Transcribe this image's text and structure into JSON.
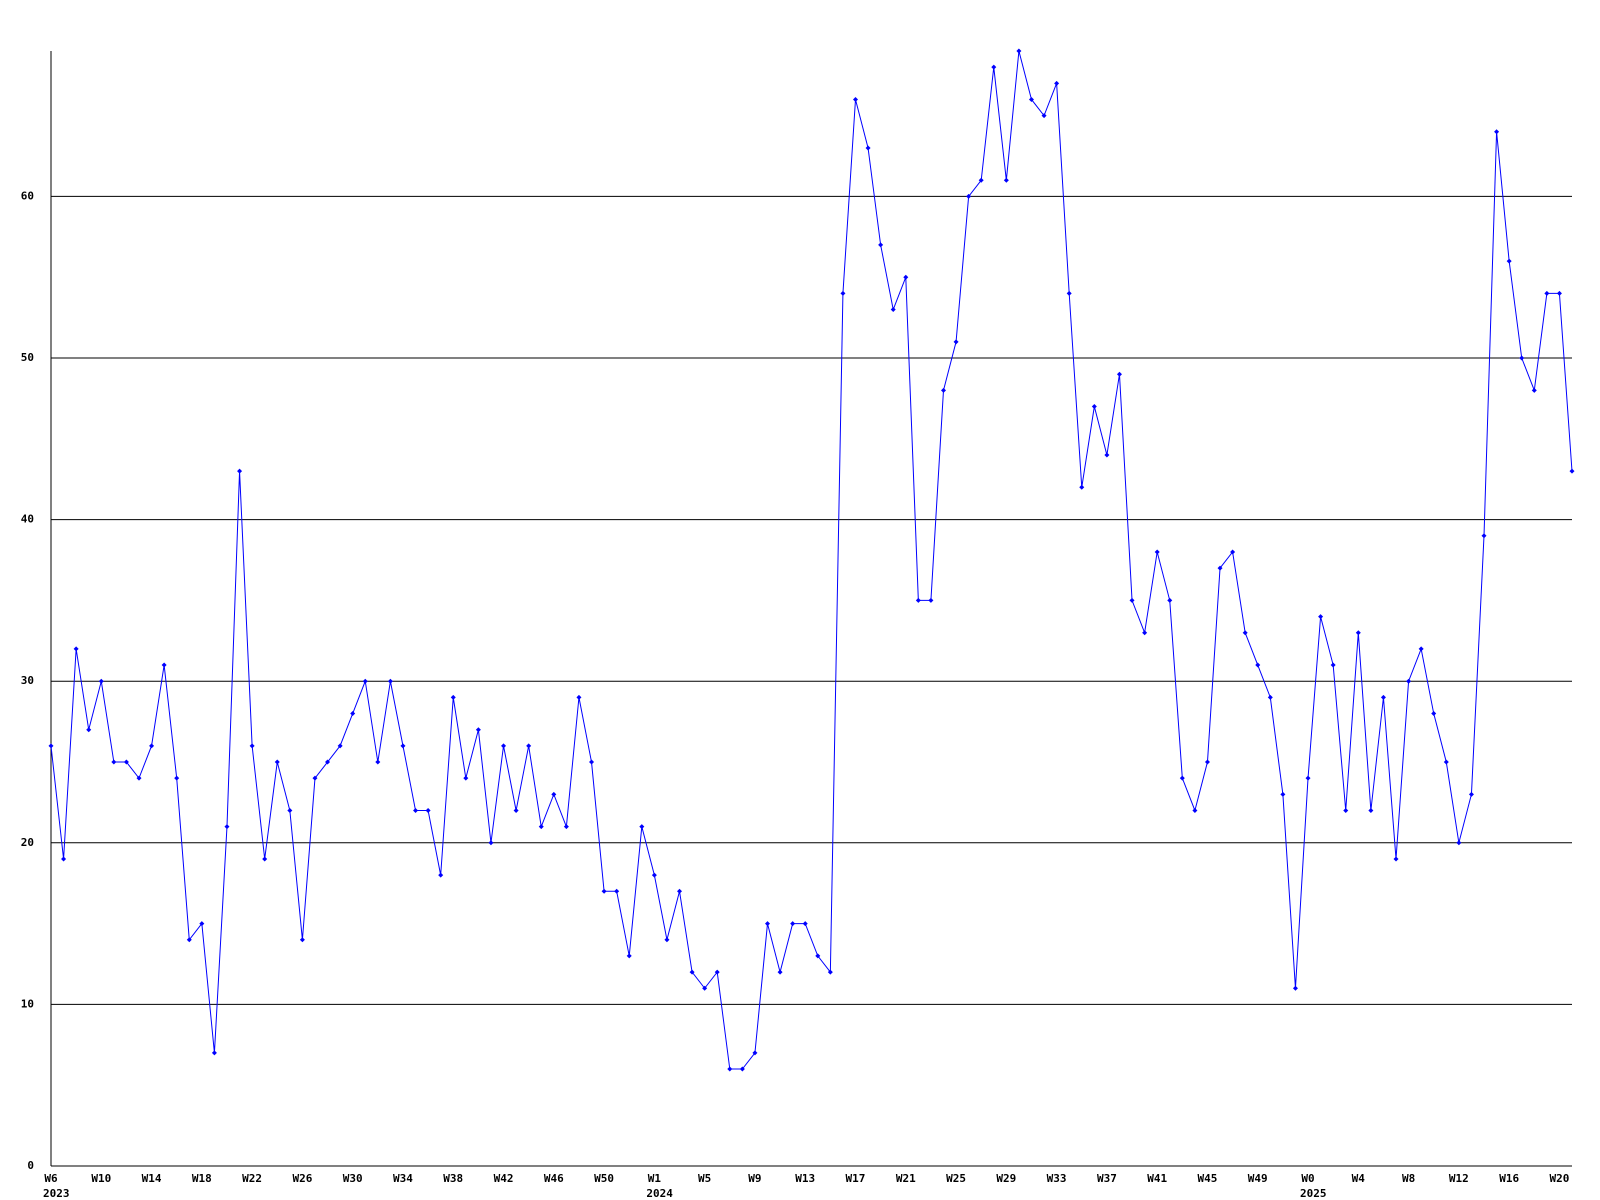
{
  "chart_data": {
    "type": "line",
    "categories": [
      "W6",
      null,
      null,
      null,
      "W10",
      null,
      null,
      null,
      "W14",
      null,
      null,
      null,
      "W18",
      null,
      null,
      null,
      "W22",
      null,
      null,
      null,
      "W26",
      null,
      null,
      null,
      "W30",
      null,
      null,
      null,
      "W34",
      null,
      null,
      null,
      "W38",
      null,
      null,
      null,
      "W42",
      null,
      null,
      null,
      "W46",
      null,
      null,
      null,
      "W50",
      null,
      null,
      null,
      "W1",
      null,
      null,
      null,
      "W5",
      null,
      null,
      null,
      "W9",
      null,
      null,
      null,
      "W13",
      null,
      null,
      null,
      "W17",
      null,
      null,
      null,
      "W21",
      null,
      null,
      null,
      "W25",
      null,
      null,
      null,
      "W29",
      null,
      null,
      null,
      "W33",
      null,
      null,
      null,
      "W37",
      null,
      null,
      null,
      "W41",
      null,
      null,
      null,
      "W45",
      null,
      null,
      null,
      "W49",
      null,
      null,
      null,
      "W0",
      null,
      null,
      null,
      "W4",
      null,
      null,
      null,
      "W8",
      null,
      null,
      null,
      "W12",
      null,
      null,
      null,
      "W16",
      null,
      null,
      null,
      "W20",
      null
    ],
    "year_labels": [
      {
        "index": 0,
        "text": "2023"
      },
      {
        "index": 48,
        "text": "2024"
      },
      {
        "index": 100,
        "text": "2025"
      }
    ],
    "values": [
      26,
      19,
      32,
      27,
      30,
      25,
      25,
      24,
      26,
      31,
      24,
      14,
      15,
      7,
      21,
      43,
      26,
      19,
      25,
      22,
      14,
      24,
      25,
      26,
      28,
      30,
      25,
      30,
      26,
      22,
      22,
      18,
      29,
      24,
      27,
      20,
      26,
      22,
      26,
      21,
      23,
      21,
      29,
      25,
      17,
      17,
      13,
      21,
      18,
      14,
      17,
      12,
      11,
      12,
      6,
      6,
      7,
      15,
      12,
      15,
      15,
      13,
      12,
      54,
      66,
      63,
      57,
      53,
      55,
      35,
      35,
      48,
      51,
      60,
      61,
      68,
      61,
      69,
      66,
      65,
      67,
      54,
      42,
      47,
      44,
      49,
      35,
      33,
      38,
      35,
      24,
      22,
      25,
      37,
      38,
      33,
      31,
      29,
      23,
      11,
      24,
      34,
      31,
      22,
      33,
      22,
      29,
      19,
      30,
      32,
      28,
      25,
      20,
      23,
      39,
      64,
      56,
      50,
      48,
      54,
      54,
      43
    ],
    "color": "#0000ff",
    "ylim": [
      0,
      69
    ],
    "yticks": [
      0,
      10,
      20,
      30,
      40,
      50,
      60
    ],
    "grid": true
  }
}
